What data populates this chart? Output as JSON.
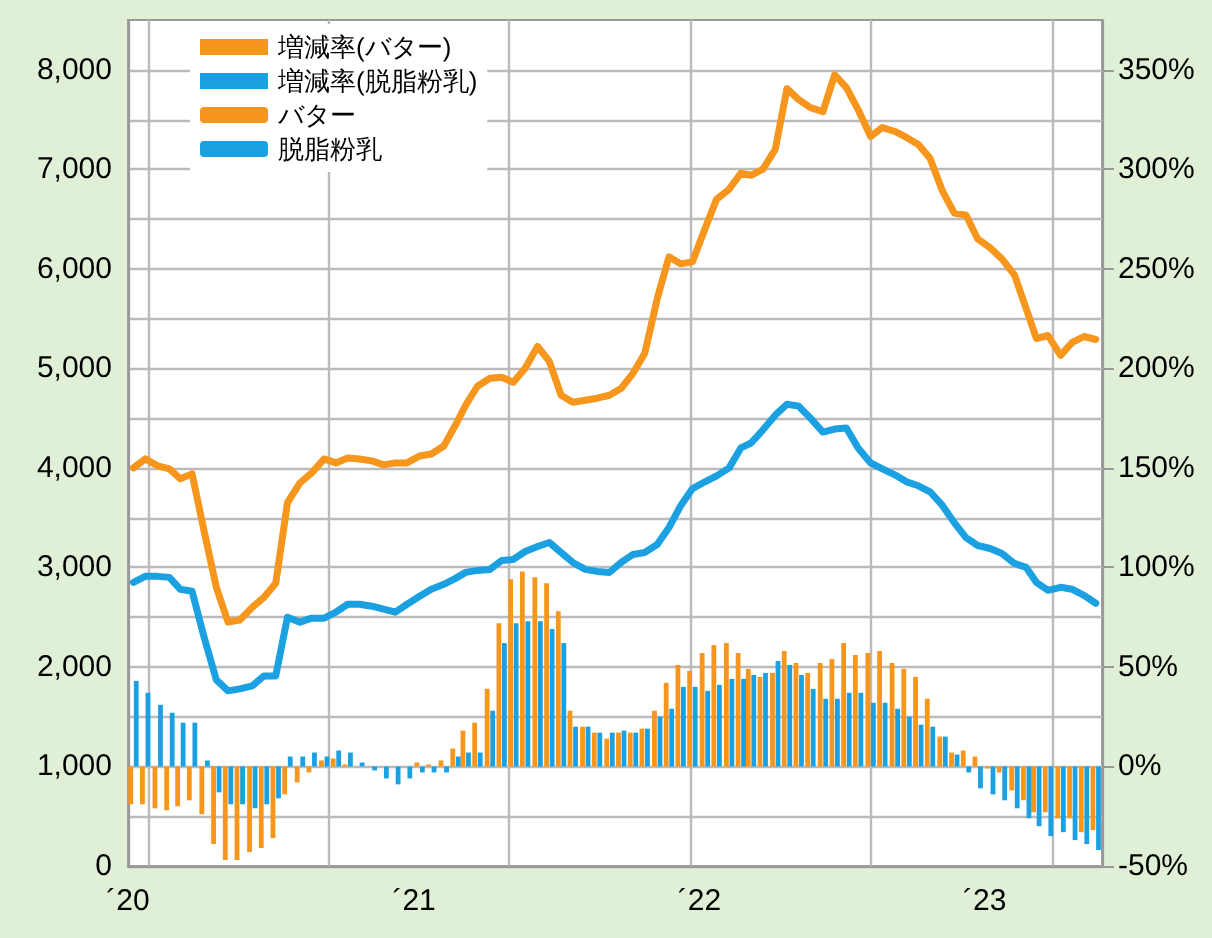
{
  "chart_data": {
    "type": "line",
    "x": [
      "2020-01-08",
      "2020-01-23",
      "2020-02-08",
      "2020-02-23",
      "2020-03-08",
      "2020-03-23",
      "2020-04-08",
      "2020-04-23",
      "2020-05-08",
      "2020-05-23",
      "2020-06-08",
      "2020-06-23",
      "2020-07-08",
      "2020-07-23",
      "2020-08-08",
      "2020-08-23",
      "2020-09-08",
      "2020-09-23",
      "2020-10-08",
      "2020-10-23",
      "2020-11-08",
      "2020-11-23",
      "2020-12-08",
      "2020-12-23",
      "2021-01-08",
      "2021-01-23",
      "2021-02-08",
      "2021-02-23",
      "2021-03-08",
      "2021-03-23",
      "2021-04-08",
      "2021-04-23",
      "2021-05-08",
      "2021-05-23",
      "2021-06-08",
      "2021-06-23",
      "2021-07-08",
      "2021-07-23",
      "2021-08-08",
      "2021-08-23",
      "2021-09-08",
      "2021-09-23",
      "2021-10-08",
      "2021-10-23",
      "2021-11-08",
      "2021-11-23",
      "2021-12-08",
      "2021-12-23",
      "2022-01-08",
      "2022-01-23",
      "2022-02-08",
      "2022-02-23",
      "2022-03-08",
      "2022-03-23",
      "2022-04-08",
      "2022-04-23",
      "2022-05-08",
      "2022-05-23",
      "2022-06-08",
      "2022-06-23",
      "2022-07-08",
      "2022-07-23",
      "2022-08-08",
      "2022-08-23",
      "2022-09-08",
      "2022-09-23",
      "2022-10-08",
      "2022-10-23",
      "2022-11-08",
      "2022-11-23",
      "2022-12-08",
      "2022-12-23",
      "2023-01-08",
      "2023-01-23",
      "2023-02-08",
      "2023-02-23",
      "2023-03-08",
      "2023-03-23",
      "2023-04-08",
      "2023-04-23",
      "2023-05-08",
      "2023-05-23"
    ],
    "series": [
      {
        "name": "増減率(バター)",
        "type": "bar",
        "axis": "y2",
        "color": "#f7961c",
        "values": [
          -19,
          -19,
          -21,
          -22,
          -20,
          -17,
          -24,
          -39,
          -47,
          -47,
          -43,
          -41,
          -36,
          -14,
          -8,
          -3,
          3,
          4,
          1,
          0,
          0,
          0,
          0,
          0,
          2,
          1,
          3,
          9,
          18,
          22,
          39,
          72,
          94,
          98,
          95,
          92,
          78,
          28,
          20,
          17,
          14,
          17,
          17,
          19,
          28,
          42,
          51,
          48,
          57,
          61,
          62,
          57,
          49,
          45,
          47,
          58,
          52,
          47,
          52,
          54,
          62,
          56,
          57,
          58,
          52,
          49,
          45,
          34,
          15,
          7,
          8,
          5,
          -1,
          -3,
          -12,
          -17,
          -23,
          -23,
          -26,
          -26,
          -33,
          -32
        ]
      },
      {
        "name": "増減率(脱脂粉乳)",
        "type": "bar",
        "axis": "y2",
        "color": "#1ba1e2",
        "values": [
          43,
          37,
          31,
          27,
          22,
          22,
          3,
          -13,
          -19,
          -19,
          -21,
          -19,
          -16,
          5,
          5,
          7,
          5,
          8,
          7,
          2,
          -2,
          -6,
          -9,
          -6,
          -3,
          -3,
          -3,
          5,
          7,
          7,
          28,
          62,
          72,
          73,
          73,
          69,
          62,
          20,
          20,
          17,
          17,
          18,
          17,
          19,
          25,
          29,
          40,
          40,
          38,
          41,
          44,
          44,
          46,
          47,
          53,
          51,
          46,
          39,
          34,
          34,
          37,
          37,
          32,
          32,
          29,
          25,
          21,
          20,
          15,
          6,
          -3,
          -11,
          -14,
          -17,
          -21,
          -26,
          -30,
          -35,
          -33,
          -37,
          -39,
          -42
        ]
      },
      {
        "name": "バター",
        "color": "#f7961c",
        "values": [
          4000,
          4090,
          4020,
          3990,
          3890,
          3940,
          3340,
          2800,
          2450,
          2470,
          2600,
          2700,
          2840,
          3650,
          3850,
          3950,
          4090,
          4050,
          4100,
          4090,
          4070,
          4030,
          4050,
          4050,
          4120,
          4140,
          4220,
          4430,
          4630,
          4820,
          4900,
          4910,
          4860,
          5000,
          5220,
          5070,
          4730,
          4660,
          4680,
          4700,
          4730,
          4800,
          4950,
          5150,
          5700,
          6120,
          6050,
          6070,
          6400,
          6700,
          6800,
          6960,
          6940,
          7000,
          7200,
          7810,
          7700,
          7620,
          7580,
          7950,
          7820,
          7600,
          7330,
          7420,
          7380,
          7320,
          7250,
          7110,
          6780,
          6560,
          6540,
          6300,
          6210,
          6100,
          5940,
          5600,
          5300,
          5330,
          5130,
          5260,
          5320,
          5290
        ]
      },
      {
        "name": "脱脂粉乳",
        "color": "#1ba1e2",
        "values": [
          2850,
          2910,
          2910,
          2900,
          2780,
          2760,
          2280,
          1870,
          1760,
          1780,
          1810,
          1910,
          1910,
          2500,
          2450,
          2490,
          2490,
          2550,
          2630,
          2630,
          2610,
          2580,
          2550,
          2630,
          2710,
          2780,
          2830,
          2890,
          2950,
          2970,
          2980,
          3070,
          3080,
          3160,
          3210,
          3250,
          3150,
          3050,
          2980,
          2960,
          2950,
          3050,
          3130,
          3150,
          3230,
          3400,
          3620,
          3790,
          3860,
          3920,
          4000,
          4200,
          4250,
          4380,
          4530,
          4640,
          4620,
          4500,
          4360,
          4390,
          4400,
          4200,
          4050,
          3990,
          3930,
          3860,
          3820,
          3760,
          3620,
          3450,
          3300,
          3220,
          3190,
          3140,
          3040,
          3000,
          2850,
          2770,
          2800,
          2780,
          2720,
          2640
        ]
      }
    ],
    "xlim": [
      "2020-01-01",
      "2023-05-31"
    ],
    "xticks": [
      {
        "value": "2020-01-01",
        "label": "´20"
      },
      {
        "value": "2021-01-01",
        "label": "´21"
      },
      {
        "value": "2022-01-01",
        "label": "´22"
      },
      {
        "value": "2023-01-01",
        "label": "´23"
      }
    ],
    "ylim": [
      0,
      8500
    ],
    "yticks": [
      0,
      {
        "value": 500,
        "label": null
      },
      {
        "value": 1000,
        "label": "1,000"
      },
      {
        "value": 1500,
        "label": null
      },
      {
        "value": 2000,
        "label": "2,000"
      },
      {
        "value": 2500,
        "label": null
      },
      {
        "value": 3000,
        "label": "3,000"
      },
      {
        "value": 3500,
        "label": null
      },
      {
        "value": 4000,
        "label": "4,000"
      },
      {
        "value": 4500,
        "label": null
      },
      {
        "value": 5000,
        "label": "5,000"
      },
      {
        "value": 5500,
        "label": null
      },
      {
        "value": 6000,
        "label": "6,000"
      },
      {
        "value": 6500,
        "label": null
      },
      {
        "value": 7000,
        "label": "7,000"
      },
      {
        "value": 7500,
        "label": null
      },
      {
        "value": 8000,
        "label": "8,000"
      }
    ],
    "y2lim": [
      -50,
      375
    ],
    "y2ticks": [
      {
        "value": -50,
        "label": "-50%"
      },
      {
        "value": 0,
        "label": "0%"
      },
      {
        "value": 50,
        "label": "50%"
      },
      {
        "value": 100,
        "label": "100%"
      },
      {
        "value": 150,
        "label": "150%"
      },
      {
        "value": 200,
        "label": "200%"
      },
      {
        "value": 250,
        "label": "250%"
      },
      {
        "value": 300,
        "label": "300%"
      },
      {
        "value": 350,
        "label": "350%"
      }
    ],
    "grid": true,
    "legend": "top left",
    "marker": "none",
    "line_style": "solid"
  }
}
